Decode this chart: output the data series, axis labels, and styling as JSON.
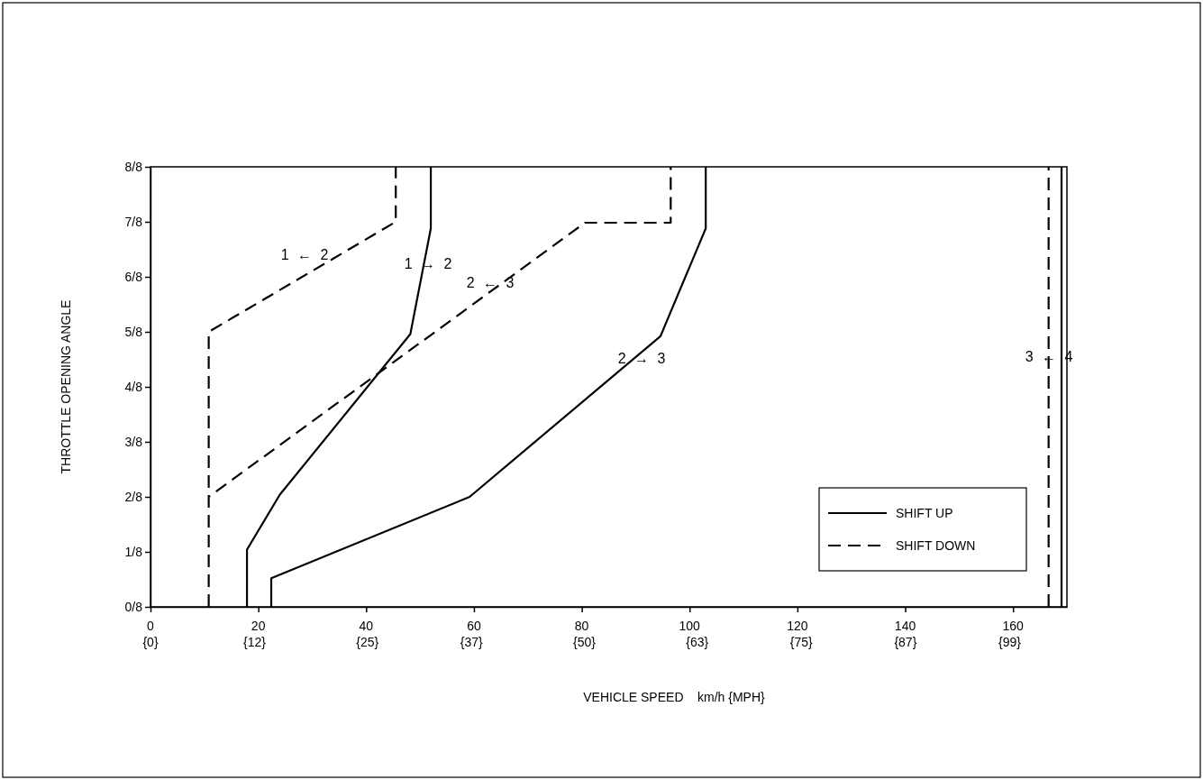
{
  "chart_data": {
    "type": "line",
    "xlabel": "VEHICLE SPEED    km/h {MPH}",
    "ylabel": "THROTTLE OPENING ANGLE",
    "xlim": [
      0,
      170
    ],
    "ylim": [
      0,
      1
    ],
    "xticks": [
      0,
      20,
      40,
      60,
      80,
      100,
      120,
      140,
      160
    ],
    "x2lim": [
      0,
      105.6
    ],
    "x2ticks": [
      {
        "value": 0,
        "label": "{0}"
      },
      {
        "value": 12,
        "label": "{12}"
      },
      {
        "value": 25,
        "label": "{25}"
      },
      {
        "value": 37,
        "label": "{37}"
      },
      {
        "value": 50,
        "label": "{50}"
      },
      {
        "value": 63,
        "label": "{63}"
      },
      {
        "value": 75,
        "label": "{75}"
      },
      {
        "value": 87,
        "label": "{87}"
      },
      {
        "value": 99,
        "label": "{99}"
      }
    ],
    "yticks": [
      {
        "value": 0,
        "label": "0/8"
      },
      {
        "value": 0.125,
        "label": "1/8"
      },
      {
        "value": 0.25,
        "label": "2/8"
      },
      {
        "value": 0.375,
        "label": "3/8"
      },
      {
        "value": 0.5,
        "label": "4/8"
      },
      {
        "value": 0.625,
        "label": "5/8"
      },
      {
        "value": 0.75,
        "label": "6/8"
      },
      {
        "value": 0.875,
        "label": "7/8"
      },
      {
        "value": 1,
        "label": "8/8"
      }
    ],
    "grid": false,
    "legend": "bottom right",
    "marker": "none",
    "series": [
      {
        "name": "SHIFT UP",
        "color": "#000000",
        "line_style": "solid",
        "x": [
          17.9,
          17.9,
          24,
          48.2,
          52,
          52,
          null,
          22.4,
          22.4,
          59.2,
          94.6,
          103,
          103,
          null,
          169,
          169
        ],
        "values": [
          0,
          0.13,
          0.255,
          0.62,
          0.86,
          1,
          null,
          0,
          0.065,
          0.25,
          0.615,
          0.86,
          1,
          null,
          0,
          1
        ]
      },
      {
        "name": "SHIFT DOWN",
        "color": "#000000",
        "line_style": "dashed",
        "x": [
          10.8,
          10.8,
          45.5,
          45.5,
          null,
          10.8,
          10.8,
          80.6,
          96.5,
          96.5,
          null,
          166.6,
          166.6
        ],
        "values": [
          0,
          0.625,
          0.875,
          1,
          null,
          0,
          0.25,
          0.873,
          0.873,
          1,
          null,
          0,
          1
        ]
      }
    ],
    "annotations": [
      "1 ← 2",
      "1 → 2",
      "2 ← 3",
      "2 → 3",
      "3 ← 4"
    ]
  }
}
